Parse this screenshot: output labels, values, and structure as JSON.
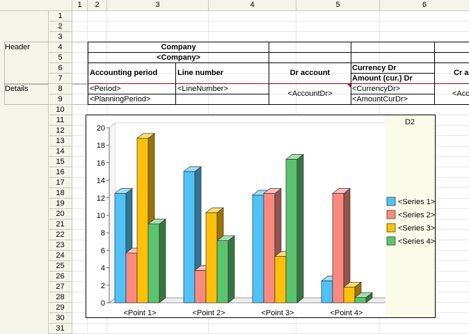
{
  "columns": [
    "1",
    "2",
    "3",
    "4",
    "5",
    "6"
  ],
  "rows": [
    "1",
    "2",
    "3",
    "4",
    "5",
    "6",
    "7",
    "8",
    "9",
    "10",
    "11",
    "12",
    "13",
    "14",
    "15",
    "16",
    "17",
    "18",
    "19",
    "20",
    "21",
    "22",
    "23",
    "24",
    "25",
    "26",
    "27",
    "28",
    "29",
    "30",
    "31"
  ],
  "sections": {
    "header": "Header",
    "details": "Details"
  },
  "table": {
    "company_title": "Company",
    "company_param": "<Company>",
    "accounting_period": "Accounting period",
    "line_number": "Line number",
    "dr_account": "Dr account",
    "currency_dr": "Currency Dr",
    "amount_cur_dr": "Amount (cur.) Dr",
    "cr_account_partial": "Cr a",
    "period": "<Period>",
    "planning_period": "<PlanningPeriod>",
    "line_number_param": "<LineNumber>",
    "account_dr_param": "<AccountDr>",
    "currency_dr_param": "<CurrencyDr>",
    "amount_cur_dr_param": "<AmountCurDr>",
    "account_cr_partial": "<Acc"
  },
  "colors": {
    "series1": "#4fc3f7",
    "series2": "#fa8a80",
    "series3": "#ffc107",
    "series4": "#5cc46e",
    "accent_red": "#a00000"
  },
  "chart_data": {
    "type": "bar",
    "title": "D2",
    "categories": [
      "<Point 1>",
      "<Point 2>",
      "<Point 3>",
      "<Point 4>"
    ],
    "series": [
      {
        "name": "<Series 1>",
        "values": [
          12.5,
          15,
          12.3,
          2.5
        ]
      },
      {
        "name": "<Series 2>",
        "values": [
          5.7,
          3.7,
          12.5,
          12.5
        ]
      },
      {
        "name": "<Series 3>",
        "values": [
          18.8,
          10.3,
          5.3,
          1.8
        ]
      },
      {
        "name": "<Series 4>",
        "values": [
          9,
          7.1,
          16.4,
          0.6
        ]
      }
    ],
    "ylim": [
      0,
      20
    ],
    "yticks": [
      "0",
      "2",
      "4",
      "6",
      "8",
      "10",
      "12",
      "14",
      "16",
      "18",
      "20"
    ],
    "legend_position": "right",
    "grid": false
  }
}
